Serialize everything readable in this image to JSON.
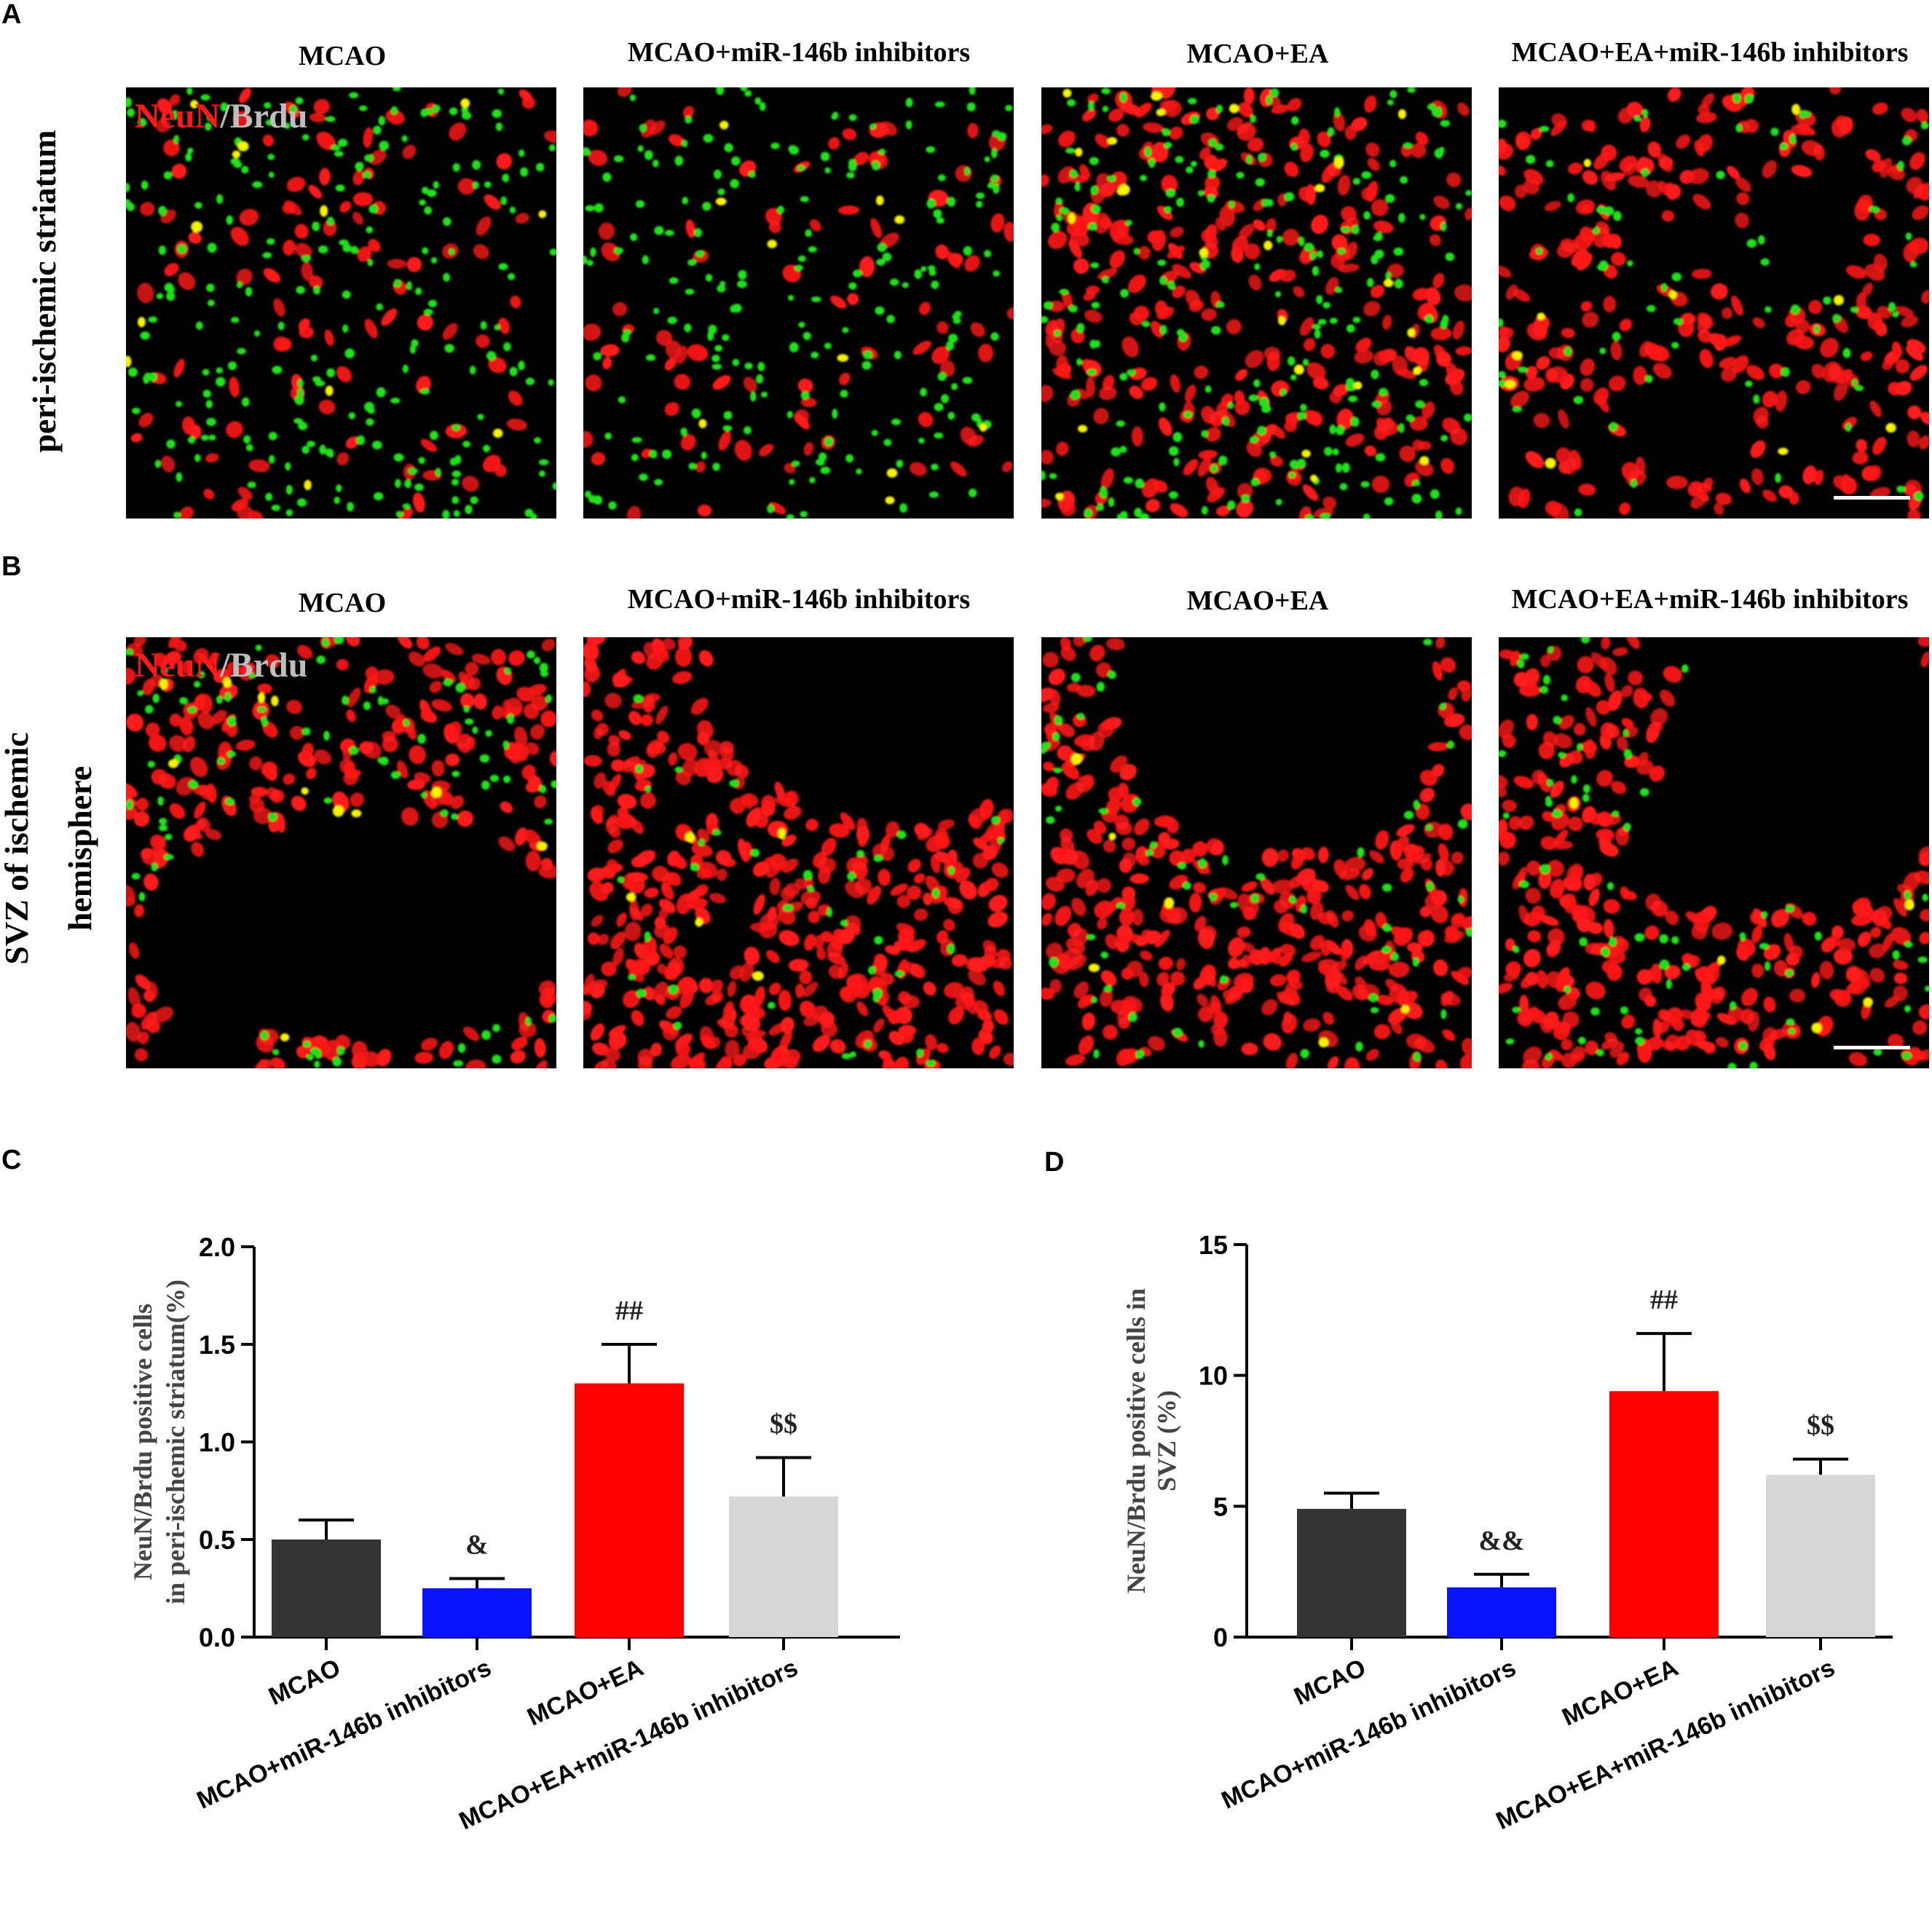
{
  "panels": {
    "a": {
      "letter": "A",
      "row_label": "peri-ischemic striatum",
      "stain": {
        "red": "NeuN",
        "sep": "/",
        "green": "Brdu"
      },
      "columns": [
        "MCAO",
        "MCAO+miR-146b inhibitors",
        "MCAO+EA",
        "MCAO+EA+miR-146b inhibitors"
      ]
    },
    "b": {
      "letter": "B",
      "row_label_line1": "SVZ of ischemic",
      "row_label_line2": "hemisphere",
      "stain": {
        "red": "NeuN",
        "sep": "/",
        "green": "Brdu"
      },
      "columns": [
        "MCAO",
        "MCAO+miR-146b inhibitors",
        "MCAO+EA",
        "MCAO+EA+miR-146b inhibitors"
      ]
    },
    "c": {
      "letter": "C"
    },
    "d": {
      "letter": "D"
    }
  },
  "colors": {
    "neun": "#ff1a1a",
    "brdu": "#22e01f",
    "merge": "#f4f200",
    "image_bg": "#000000",
    "bar_mcao": "#333333",
    "bar_inhib": "#0a14ff",
    "bar_ea": "#ff0000",
    "bar_ea_inhib": "#d7d7d7"
  },
  "chart_data": [
    {
      "type": "bar",
      "panel": "C",
      "ylabel_line1": "NeuN/Brdu positive cells",
      "ylabel_line2": "in peri-ischemic striatum(%)",
      "categories": [
        "MCAO",
        "MCAO+miR-146b inhibitors",
        "MCAO+EA",
        "MCAO+EA+miR-146b inhibitors"
      ],
      "values": [
        0.5,
        0.25,
        1.3,
        0.72
      ],
      "errors": [
        0.1,
        0.05,
        0.2,
        0.2
      ],
      "annotations": [
        "",
        "&",
        "##",
        "$$"
      ],
      "ylim": [
        0,
        2.0
      ],
      "yticks": [
        "0.0",
        "0.5",
        "1.0",
        "1.5",
        "2.0"
      ],
      "ytick_values": [
        0,
        0.5,
        1.0,
        1.5,
        2.0
      ]
    },
    {
      "type": "bar",
      "panel": "D",
      "ylabel_line1": "NeuN/Brdu positive cells in",
      "ylabel_line2": "SVZ (%)",
      "categories": [
        "MCAO",
        "MCAO+miR-146b inhibitors",
        "MCAO+EA",
        "MCAO+EA+miR-146b inhibitors"
      ],
      "values": [
        4.9,
        1.9,
        9.4,
        6.2
      ],
      "errors": [
        0.6,
        0.5,
        2.2,
        0.6
      ],
      "annotations": [
        "",
        "&&",
        "##",
        "$$"
      ],
      "ylim": [
        0,
        15
      ],
      "yticks": [
        "0",
        "5",
        "10",
        "15"
      ],
      "ytick_values": [
        0,
        5,
        10,
        15
      ]
    }
  ]
}
